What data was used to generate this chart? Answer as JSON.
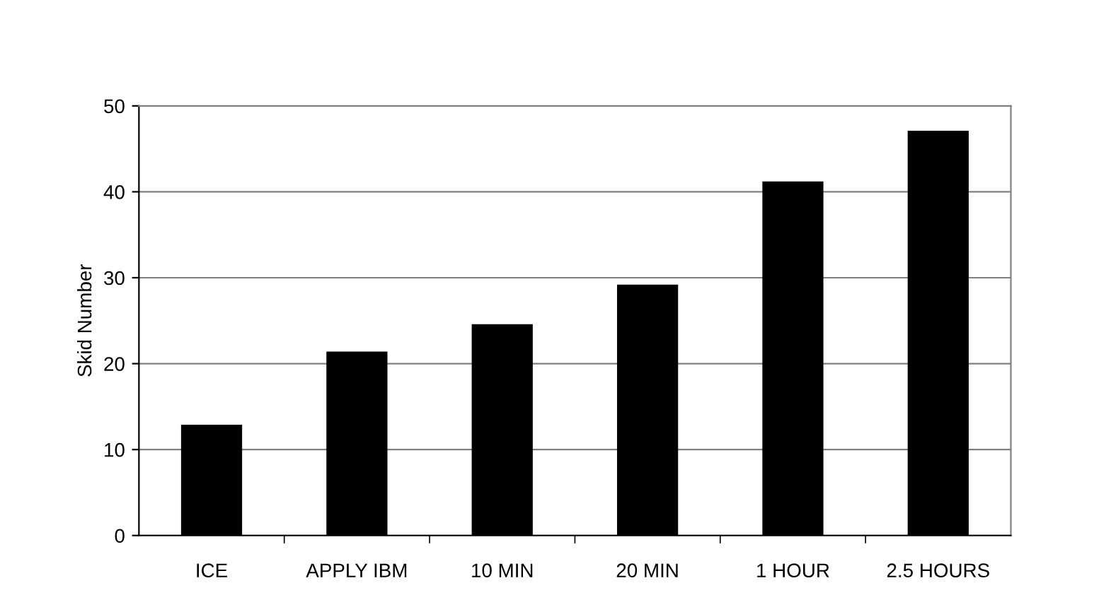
{
  "chart_data": {
    "type": "bar",
    "ylabel": "Skid Number",
    "categories": [
      "ICE",
      "APPLY IBM",
      "10 MIN",
      "20 MIN",
      "1 HOUR",
      "2.5 HOURS"
    ],
    "values": [
      12.9,
      21.4,
      24.6,
      29.2,
      41.2,
      47.1
    ],
    "color": "#000000",
    "ylim": [
      0,
      50
    ],
    "yticks": [
      0,
      10,
      20,
      30,
      40,
      50
    ],
    "grid": "y",
    "legend": false
  }
}
